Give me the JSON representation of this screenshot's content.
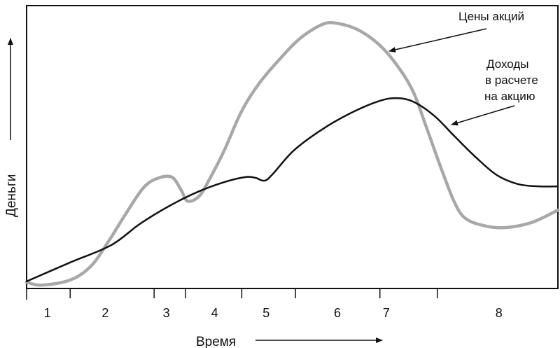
{
  "chart_data": {
    "type": "line",
    "title": "",
    "xlabel": "Время",
    "ylabel": "Деньги",
    "xlim": [
      0,
      100
    ],
    "ylim": [
      0,
      100
    ],
    "grid": false,
    "period_boundaries": [
      8.2,
      24.0,
      29.9,
      40.5,
      50.6,
      66.5,
      77.3
    ],
    "tick_labels": [
      {
        "label": "1",
        "x": 3.9
      },
      {
        "label": "2",
        "x": 14.8
      },
      {
        "label": "3",
        "x": 26.3
      },
      {
        "label": "4",
        "x": 35.4
      },
      {
        "label": "5",
        "x": 45.1
      },
      {
        "label": "6",
        "x": 58.5
      },
      {
        "label": "7",
        "x": 67.7
      },
      {
        "label": "8",
        "x": 88.9
      }
    ],
    "series": [
      {
        "name": "Цены акций",
        "color": "#a8a8a8",
        "x": [
          0,
          2.9,
          8.2,
          12.1,
          15.4,
          18.7,
          22.0,
          24.6,
          27.3,
          29.0,
          30.3,
          32.5,
          34.5,
          37.2,
          40.4,
          43.7,
          47.7,
          51.6,
          55.6,
          58.2,
          62.2,
          66.1,
          69.4,
          72.7,
          75.4,
          78.0,
          80.6,
          82.6,
          85.9,
          89.9,
          95.0,
          100
        ],
        "y": [
          2.2,
          1.2,
          3.0,
          7.9,
          16.6,
          26.5,
          35.6,
          38.9,
          39.4,
          35.1,
          30.9,
          32.7,
          38.9,
          48.8,
          62.4,
          72.3,
          81.2,
          88.6,
          93.3,
          93.8,
          91.6,
          86.6,
          79.7,
          69.8,
          56.2,
          42.6,
          30.2,
          24.8,
          22.3,
          21.5,
          23.3,
          27.7
        ]
      },
      {
        "name": "Доходы в расчете на акцию",
        "name_lines": [
          "Доходы",
          "в расчете",
          "на акцию"
        ],
        "color": "#111111",
        "x": [
          0,
          8.2,
          15.9,
          21.3,
          26.6,
          31.9,
          37.2,
          41.2,
          43.1,
          44.8,
          46.4,
          50.3,
          55.6,
          60.9,
          66.1,
          69.4,
          72.7,
          76.7,
          80.6,
          84.6,
          88.5,
          92.5,
          96.4,
          100
        ],
        "y": [
          2.5,
          9.2,
          15.3,
          22.8,
          28.9,
          33.9,
          37.6,
          39.4,
          39.1,
          38.1,
          40.6,
          48.8,
          56.2,
          61.9,
          66.1,
          67.3,
          66.1,
          61.1,
          53.7,
          46.3,
          40.1,
          36.9,
          36.1,
          36.1
        ]
      }
    ]
  }
}
